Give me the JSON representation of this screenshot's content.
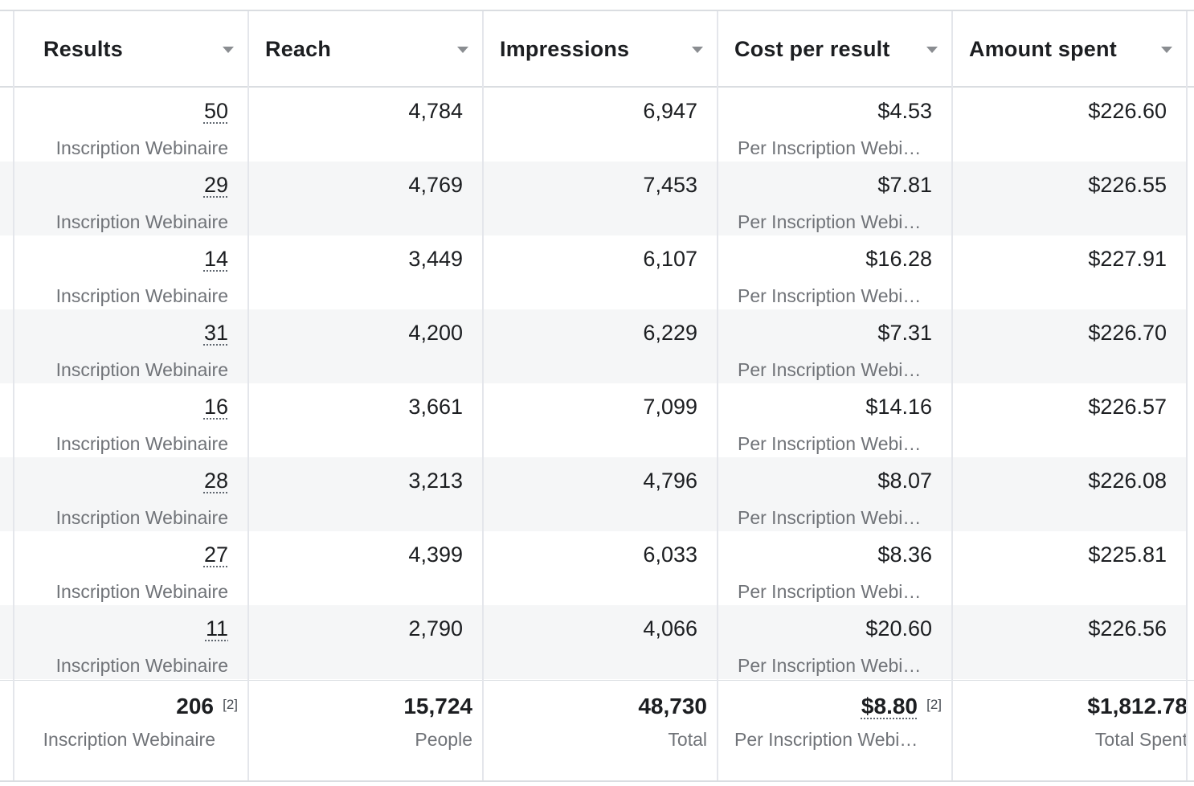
{
  "columns": [
    {
      "label": "Results",
      "sort_icon": "chevron-down-icon"
    },
    {
      "label": "Reach",
      "sort_icon": "chevron-down-icon"
    },
    {
      "label": "Impressions",
      "sort_icon": "chevron-down-icon"
    },
    {
      "label": "Cost per result",
      "sort_icon": "chevron-down-icon"
    },
    {
      "label": "Amount spent",
      "sort_icon": "chevron-down-icon"
    }
  ],
  "rows": [
    {
      "results": "50",
      "results_type": "Inscription Webinaire",
      "reach": "4,784",
      "impressions": "6,947",
      "cost": "$4.53",
      "cost_type": "Per Inscription Webi…",
      "spent": "$226.60"
    },
    {
      "results": "29",
      "results_type": "Inscription Webinaire",
      "reach": "4,769",
      "impressions": "7,453",
      "cost": "$7.81",
      "cost_type": "Per Inscription Webi…",
      "spent": "$226.55"
    },
    {
      "results": "14",
      "results_type": "Inscription Webinaire",
      "reach": "3,449",
      "impressions": "6,107",
      "cost": "$16.28",
      "cost_type": "Per Inscription Webi…",
      "spent": "$227.91"
    },
    {
      "results": "31",
      "results_type": "Inscription Webinaire",
      "reach": "4,200",
      "impressions": "6,229",
      "cost": "$7.31",
      "cost_type": "Per Inscription Webi…",
      "spent": "$226.70"
    },
    {
      "results": "16",
      "results_type": "Inscription Webinaire",
      "reach": "3,661",
      "impressions": "7,099",
      "cost": "$14.16",
      "cost_type": "Per Inscription Webi…",
      "spent": "$226.57"
    },
    {
      "results": "28",
      "results_type": "Inscription Webinaire",
      "reach": "3,213",
      "impressions": "4,796",
      "cost": "$8.07",
      "cost_type": "Per Inscription Webi…",
      "spent": "$226.08"
    },
    {
      "results": "27",
      "results_type": "Inscription Webinaire",
      "reach": "4,399",
      "impressions": "6,033",
      "cost": "$8.36",
      "cost_type": "Per Inscription Webi…",
      "spent": "$225.81"
    },
    {
      "results": "11",
      "results_type": "Inscription Webinaire",
      "reach": "2,790",
      "impressions": "4,066",
      "cost": "$20.60",
      "cost_type": "Per Inscription Webi…",
      "spent": "$226.56"
    }
  ],
  "totals": {
    "results": "206",
    "results_note": "[2]",
    "results_type": "Inscription Webinaire",
    "reach": "15,724",
    "reach_type": "People",
    "impressions": "48,730",
    "impressions_type": "Total",
    "cost": "$8.80",
    "cost_note": "[2]",
    "cost_type": "Per Inscription Webi…",
    "spent": "$1,812.78",
    "spent_type": "Total Spent"
  }
}
